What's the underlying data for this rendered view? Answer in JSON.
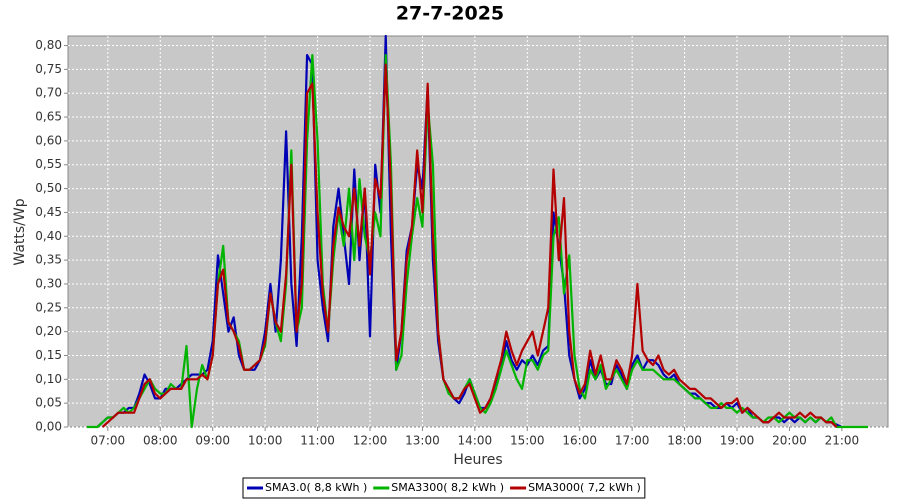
{
  "chart_data": {
    "type": "line",
    "title": "27-7-2025",
    "x_label": "Heures",
    "y_label": "Watts/Wp",
    "xlim": [
      6.24,
      21.88
    ],
    "ylim": [
      0,
      0.82
    ],
    "grid": true,
    "legend": "bottom",
    "xticks": [
      {
        "value": 7,
        "label": "07:00"
      },
      {
        "value": 8,
        "label": "08:00"
      },
      {
        "value": 9,
        "label": "09:00"
      },
      {
        "value": 10,
        "label": "10:00"
      },
      {
        "value": 11,
        "label": "11:00"
      },
      {
        "value": 12,
        "label": "12:00"
      },
      {
        "value": 13,
        "label": "13:00"
      },
      {
        "value": 14,
        "label": "14:00"
      },
      {
        "value": 15,
        "label": "15:00"
      },
      {
        "value": 16,
        "label": "16:00"
      },
      {
        "value": 17,
        "label": "17:00"
      },
      {
        "value": 18,
        "label": "18:00"
      },
      {
        "value": 19,
        "label": "19:00"
      },
      {
        "value": 20,
        "label": "20:00"
      },
      {
        "value": 21,
        "label": "21:00"
      }
    ],
    "yticks": [
      {
        "value": 0,
        "label": "0,00"
      },
      {
        "value": 0.05,
        "label": "0,05"
      },
      {
        "value": 0.1,
        "label": "0,10"
      },
      {
        "value": 0.15,
        "label": "0,15"
      },
      {
        "value": 0.2,
        "label": "0,20"
      },
      {
        "value": 0.25,
        "label": "0,25"
      },
      {
        "value": 0.3,
        "label": "0,30"
      },
      {
        "value": 0.35,
        "label": "0,35"
      },
      {
        "value": 0.4,
        "label": "0,40"
      },
      {
        "value": 0.45,
        "label": "0,45"
      },
      {
        "value": 0.5,
        "label": "0,50"
      },
      {
        "value": 0.55,
        "label": "0,55"
      },
      {
        "value": 0.6,
        "label": "0,60"
      },
      {
        "value": 0.65,
        "label": "0,65"
      },
      {
        "value": 0.7,
        "label": "0,70"
      },
      {
        "value": 0.75,
        "label": "0,75"
      },
      {
        "value": 0.8,
        "label": "0,80"
      }
    ],
    "x": [
      6.6,
      6.7,
      6.8,
      6.9,
      7.0,
      7.1,
      7.2,
      7.3,
      7.4,
      7.5,
      7.6,
      7.7,
      7.8,
      7.9,
      8.0,
      8.1,
      8.2,
      8.3,
      8.4,
      8.5,
      8.6,
      8.7,
      8.8,
      8.9,
      9.0,
      9.1,
      9.2,
      9.3,
      9.4,
      9.5,
      9.6,
      9.7,
      9.8,
      9.9,
      10.0,
      10.1,
      10.2,
      10.3,
      10.4,
      10.5,
      10.6,
      10.7,
      10.8,
      10.9,
      11.0,
      11.1,
      11.2,
      11.3,
      11.4,
      11.5,
      11.6,
      11.7,
      11.8,
      11.9,
      12.0,
      12.1,
      12.2,
      12.3,
      12.4,
      12.5,
      12.6,
      12.7,
      12.8,
      12.9,
      13.0,
      13.1,
      13.2,
      13.3,
      13.4,
      13.5,
      13.6,
      13.7,
      13.8,
      13.9,
      14.0,
      14.1,
      14.2,
      14.3,
      14.4,
      14.5,
      14.6,
      14.7,
      14.8,
      14.9,
      15.0,
      15.1,
      15.2,
      15.3,
      15.4,
      15.5,
      15.6,
      15.7,
      15.8,
      15.9,
      16.0,
      16.1,
      16.2,
      16.3,
      16.4,
      16.5,
      16.6,
      16.7,
      16.8,
      16.9,
      17.0,
      17.1,
      17.2,
      17.3,
      17.4,
      17.5,
      17.6,
      17.7,
      17.8,
      17.9,
      18.0,
      18.1,
      18.2,
      18.3,
      18.4,
      18.5,
      18.6,
      18.7,
      18.8,
      18.9,
      19.0,
      19.1,
      19.2,
      19.3,
      19.4,
      19.5,
      19.6,
      19.7,
      19.8,
      19.9,
      20.0,
      20.1,
      20.2,
      20.3,
      20.4,
      20.5,
      20.6,
      20.7,
      20.8,
      20.9,
      21.0,
      21.1,
      21.2,
      21.3,
      21.4,
      21.5
    ],
    "series": [
      {
        "name": "SMA3.0( 8,8 kWh )",
        "color": "#0000b4",
        "values": [
          null,
          null,
          0,
          0.01,
          0.02,
          0.02,
          0.03,
          0.03,
          0.04,
          0.04,
          0.07,
          0.11,
          0.09,
          0.06,
          0.06,
          0.08,
          0.08,
          0.08,
          0.09,
          0.1,
          0.11,
          0.11,
          0.11,
          0.12,
          0.18,
          0.36,
          0.28,
          0.2,
          0.23,
          0.15,
          0.12,
          0.12,
          0.12,
          0.14,
          0.2,
          0.3,
          0.2,
          0.35,
          0.62,
          0.3,
          0.17,
          0.4,
          0.78,
          0.76,
          0.35,
          0.25,
          0.18,
          0.42,
          0.5,
          0.4,
          0.3,
          0.54,
          0.35,
          0.5,
          0.19,
          0.55,
          0.45,
          0.82,
          0.4,
          0.12,
          0.2,
          0.37,
          0.42,
          0.55,
          0.5,
          0.71,
          0.35,
          0.18,
          0.1,
          0.08,
          0.06,
          0.05,
          0.07,
          0.1,
          0.07,
          0.04,
          0.04,
          0.06,
          0.09,
          0.12,
          0.18,
          0.14,
          0.12,
          0.14,
          0.13,
          0.15,
          0.13,
          0.16,
          0.17,
          0.45,
          0.38,
          0.3,
          0.15,
          0.1,
          0.06,
          0.08,
          0.14,
          0.1,
          0.12,
          0.09,
          0.09,
          0.13,
          0.11,
          0.08,
          0.13,
          0.15,
          0.12,
          0.14,
          0.14,
          0.13,
          0.11,
          0.1,
          0.11,
          0.09,
          0.08,
          0.07,
          0.07,
          0.06,
          0.05,
          0.05,
          0.04,
          0.04,
          0.05,
          0.04,
          0.05,
          0.03,
          0.04,
          0.02,
          0.02,
          0.01,
          0.01,
          0.02,
          0.02,
          0.01,
          0.02,
          0.01,
          0.02,
          0.01,
          0.02,
          0.01,
          0.02,
          0.01,
          0.01,
          0.005,
          0,
          null,
          null,
          null,
          null,
          null
        ]
      },
      {
        "name": "SMA3300( 8,2 kWh )",
        "color": "#00b400",
        "values": [
          0,
          0,
          0,
          0.01,
          0.02,
          0.02,
          0.03,
          0.04,
          0.03,
          0.04,
          0.06,
          0.08,
          0.1,
          0.08,
          0.07,
          0.07,
          0.09,
          0.08,
          0.08,
          0.17,
          0.0,
          0.08,
          0.13,
          0.1,
          0.15,
          0.3,
          0.38,
          0.22,
          0.2,
          0.18,
          0.12,
          0.12,
          0.13,
          0.14,
          0.17,
          0.28,
          0.22,
          0.18,
          0.3,
          0.58,
          0.2,
          0.25,
          0.6,
          0.78,
          0.6,
          0.3,
          0.2,
          0.35,
          0.45,
          0.38,
          0.5,
          0.35,
          0.52,
          0.4,
          0.35,
          0.45,
          0.4,
          0.78,
          0.55,
          0.12,
          0.15,
          0.3,
          0.4,
          0.48,
          0.42,
          0.68,
          0.55,
          0.2,
          0.1,
          0.07,
          0.06,
          0.06,
          0.08,
          0.1,
          0.07,
          0.04,
          0.03,
          0.05,
          0.08,
          0.12,
          0.16,
          0.13,
          0.1,
          0.08,
          0.14,
          0.14,
          0.12,
          0.15,
          0.16,
          0.4,
          0.44,
          0.28,
          0.36,
          0.15,
          0.08,
          0.06,
          0.12,
          0.1,
          0.13,
          0.08,
          0.1,
          0.12,
          0.1,
          0.08,
          0.12,
          0.14,
          0.12,
          0.12,
          0.12,
          0.11,
          0.1,
          0.1,
          0.1,
          0.09,
          0.08,
          0.07,
          0.06,
          0.06,
          0.05,
          0.04,
          0.04,
          0.05,
          0.04,
          0.04,
          0.03,
          0.04,
          0.03,
          0.02,
          0.02,
          0.01,
          0.02,
          0.02,
          0.01,
          0.02,
          0.03,
          0.02,
          0.02,
          0.01,
          0.02,
          0.01,
          0.02,
          0.01,
          0.02,
          0,
          0,
          0,
          0,
          0,
          0,
          0
        ]
      },
      {
        "name": "SMA3000( 7,2 kWh )",
        "color": "#b40000",
        "values": [
          null,
          null,
          null,
          0,
          0.01,
          0.02,
          0.03,
          0.03,
          0.03,
          0.03,
          0.06,
          0.09,
          0.1,
          0.07,
          0.06,
          0.07,
          0.08,
          0.08,
          0.08,
          0.1,
          0.1,
          0.1,
          0.11,
          0.1,
          0.15,
          0.3,
          0.33,
          0.22,
          0.2,
          0.17,
          0.12,
          0.12,
          0.13,
          0.14,
          0.18,
          0.28,
          0.22,
          0.2,
          0.32,
          0.55,
          0.2,
          0.3,
          0.7,
          0.72,
          0.45,
          0.28,
          0.2,
          0.38,
          0.46,
          0.42,
          0.4,
          0.5,
          0.38,
          0.5,
          0.32,
          0.52,
          0.48,
          0.76,
          0.5,
          0.14,
          0.2,
          0.35,
          0.42,
          0.58,
          0.45,
          0.72,
          0.4,
          0.2,
          0.1,
          0.08,
          0.06,
          0.06,
          0.08,
          0.09,
          0.06,
          0.03,
          0.04,
          0.06,
          0.1,
          0.14,
          0.2,
          0.16,
          0.13,
          0.16,
          0.18,
          0.2,
          0.15,
          0.2,
          0.25,
          0.54,
          0.35,
          0.48,
          0.2,
          0.1,
          0.07,
          0.09,
          0.16,
          0.11,
          0.15,
          0.1,
          0.1,
          0.14,
          0.12,
          0.09,
          0.15,
          0.3,
          0.16,
          0.14,
          0.13,
          0.15,
          0.12,
          0.11,
          0.12,
          0.1,
          0.09,
          0.08,
          0.08,
          0.07,
          0.06,
          0.06,
          0.05,
          0.04,
          0.05,
          0.05,
          0.06,
          0.03,
          0.04,
          0.03,
          0.02,
          0.01,
          0.01,
          0.02,
          0.03,
          0.02,
          0.02,
          0.02,
          0.03,
          0.02,
          0.03,
          0.02,
          0.02,
          0.01,
          0.01,
          0,
          null,
          null,
          null,
          null,
          null,
          null
        ]
      }
    ]
  }
}
